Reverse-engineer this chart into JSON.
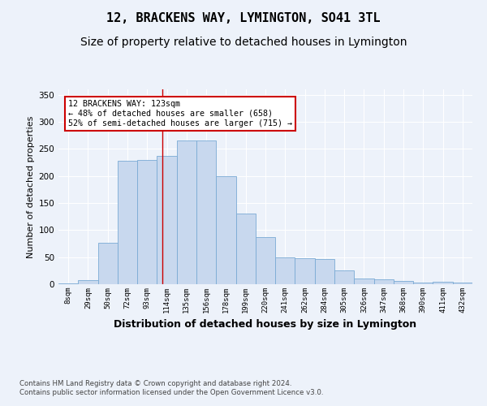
{
  "title": "12, BRACKENS WAY, LYMINGTON, SO41 3TL",
  "subtitle": "Size of property relative to detached houses in Lymington",
  "xlabel": "Distribution of detached houses by size in Lymington",
  "ylabel": "Number of detached properties",
  "bar_color": "#c8d8ee",
  "bar_edge_color": "#7aaad4",
  "categories": [
    "8sqm",
    "29sqm",
    "50sqm",
    "72sqm",
    "93sqm",
    "114sqm",
    "135sqm",
    "156sqm",
    "178sqm",
    "199sqm",
    "220sqm",
    "241sqm",
    "262sqm",
    "284sqm",
    "305sqm",
    "326sqm",
    "347sqm",
    "368sqm",
    "390sqm",
    "411sqm",
    "432sqm"
  ],
  "values": [
    2,
    8,
    77,
    228,
    230,
    237,
    265,
    265,
    200,
    130,
    87,
    50,
    48,
    46,
    25,
    11,
    9,
    6,
    3,
    5,
    3
  ],
  "ylim": [
    0,
    360
  ],
  "yticks": [
    0,
    50,
    100,
    150,
    200,
    250,
    300,
    350
  ],
  "vline_index": 4.76,
  "vline_color": "#cc0000",
  "annotation_text": "12 BRACKENS WAY: 123sqm\n← 48% of detached houses are smaller (658)\n52% of semi-detached houses are larger (715) →",
  "annotation_box_color": "#ffffff",
  "annotation_box_edge": "#cc0000",
  "footer_text": "Contains HM Land Registry data © Crown copyright and database right 2024.\nContains public sector information licensed under the Open Government Licence v3.0.",
  "background_color": "#edf2fa",
  "grid_color": "#ffffff",
  "title_fontsize": 11,
  "subtitle_fontsize": 10,
  "ylabel_fontsize": 8,
  "xlabel_fontsize": 9
}
